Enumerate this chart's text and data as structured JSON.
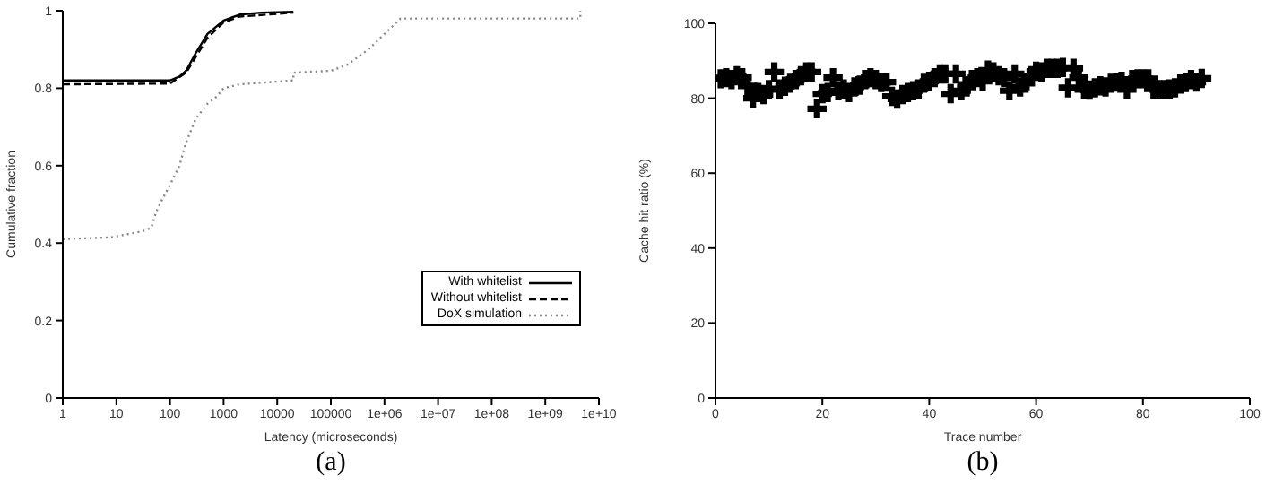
{
  "chart_data": [
    {
      "type": "line",
      "xlabel": "Latency (microseconds)",
      "ylabel": "Cumulative fraction",
      "log": "x",
      "xlim": [
        1,
        10000000000
      ],
      "xticks": [
        1,
        10,
        100,
        1000,
        10000,
        100000,
        {
          "value": 1000000,
          "label": "1e+06"
        },
        {
          "value": 10000000,
          "label": "1e+07"
        },
        {
          "value": 100000000,
          "label": "1e+08"
        },
        {
          "value": 1000000000,
          "label": "1e+09"
        },
        {
          "value": 10000000000,
          "label": "1e+10"
        }
      ],
      "ylim": [
        0,
        1
      ],
      "yticks": [
        0,
        0.2,
        0.4,
        0.6,
        0.8,
        1
      ],
      "legend": "bottom right",
      "annotations": [
        "(a)"
      ],
      "series": [
        {
          "name": "With whitelist",
          "color": "#000000",
          "line_style": "solid",
          "x": [
            1,
            100,
            150,
            200,
            300,
            500,
            1000,
            2000,
            5000,
            20000
          ],
          "values": [
            0.82,
            0.82,
            0.83,
            0.845,
            0.89,
            0.94,
            0.975,
            0.99,
            0.995,
            0.997
          ]
        },
        {
          "name": "Without whitelist",
          "color": "#000000",
          "line_style": "dashed",
          "x": [
            1,
            100,
            200,
            300,
            500,
            1000,
            2000,
            20000
          ],
          "values": [
            0.81,
            0.812,
            0.84,
            0.88,
            0.93,
            0.97,
            0.985,
            0.995
          ]
        },
        {
          "name": "DoX simulation",
          "color": "#888888",
          "line_style": "dotted",
          "x": [
            1,
            8,
            30,
            45,
            55,
            70,
            100,
            150,
            200,
            300,
            500,
            700,
            1000,
            2000,
            20000,
            20000,
            100000,
            200000,
            500000,
            1000000,
            2000000,
            4500000000,
            4500000000
          ],
          "values": [
            0.41,
            0.415,
            0.43,
            0.44,
            0.48,
            0.51,
            0.55,
            0.6,
            0.66,
            0.72,
            0.76,
            0.775,
            0.8,
            0.81,
            0.82,
            0.84,
            0.845,
            0.86,
            0.9,
            0.94,
            0.98,
            0.98,
            1
          ]
        }
      ]
    },
    {
      "type": "scatter",
      "xlabel": "Trace number",
      "ylabel": "Cache hit ratio (%)",
      "xlim": [
        0,
        100
      ],
      "xticks": [
        0,
        20,
        40,
        60,
        80,
        100
      ],
      "ylim": [
        0,
        100
      ],
      "yticks": [
        0,
        20,
        40,
        60,
        80,
        100
      ],
      "marker": "cross",
      "annotations": [
        "(b)"
      ],
      "series": [
        {
          "color": "#000000",
          "x": [
            1,
            2,
            3,
            4,
            5,
            6,
            7,
            8,
            9,
            10,
            11,
            12,
            13,
            14,
            15,
            16,
            17,
            18,
            19,
            20,
            21,
            22,
            23,
            24,
            25,
            26,
            27,
            28,
            29,
            30,
            31,
            32,
            33,
            34,
            35,
            36,
            37,
            38,
            39,
            40,
            41,
            42,
            43,
            44,
            45,
            46,
            47,
            48,
            49,
            50,
            51,
            52,
            53,
            54,
            55,
            56,
            57,
            58,
            59,
            60,
            61,
            62,
            63,
            64,
            65,
            66,
            67,
            68,
            69,
            70,
            71,
            72,
            73,
            74,
            75,
            76,
            77,
            78,
            79,
            80,
            81,
            82,
            83,
            84,
            85,
            86,
            87,
            88,
            89,
            90,
            91
          ],
          "values": [
            85.2,
            85.5,
            85,
            86,
            85.5,
            83.3,
            80,
            81.5,
            81,
            82.3,
            87,
            82.5,
            83.2,
            84,
            85,
            86,
            87,
            87,
            77.2,
            81.2,
            81.5,
            85.5,
            82,
            82.5,
            81.5,
            83,
            83.5,
            85,
            85.5,
            85,
            84.2,
            84.3,
            80.5,
            79.8,
            81,
            81.5,
            82,
            82.5,
            84,
            84.5,
            85.5,
            86.5,
            86.5,
            81.2,
            86.5,
            82,
            83,
            85,
            85.5,
            84.5,
            87.5,
            87,
            86,
            85.5,
            82,
            86.5,
            83,
            84,
            86,
            87.2,
            87,
            88,
            88,
            88,
            88.2,
            82.8,
            88,
            85.5,
            82.3,
            82.2,
            82.8,
            83.3,
            83,
            84,
            84.3,
            84.5,
            82.3,
            85,
            85.2,
            85.2,
            85.2,
            82.5,
            82.3,
            82.3,
            82.5,
            82.8,
            83.8,
            84.2,
            85,
            84.3,
            85.3
          ]
        }
      ]
    }
  ]
}
